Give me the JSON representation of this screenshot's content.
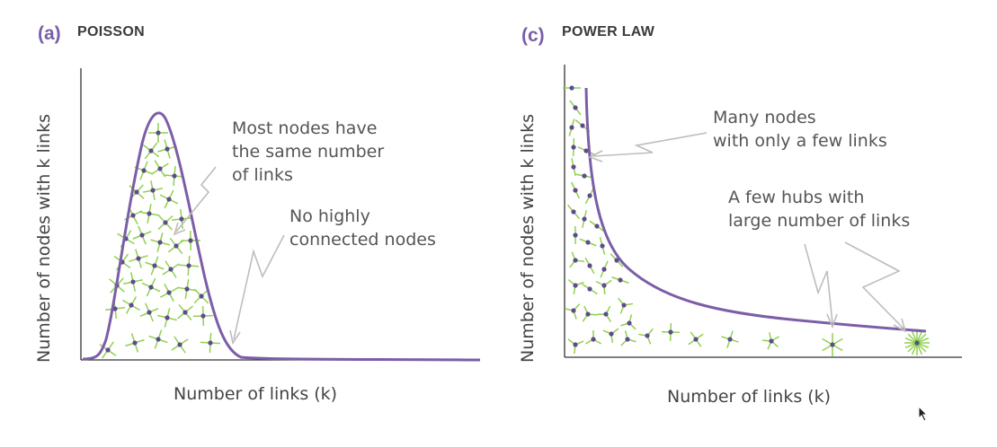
{
  "panel_a": {
    "tag": "(a)",
    "title": "POISSON",
    "annotation_1": [
      "Most nodes have",
      "the same number",
      "of links"
    ],
    "annotation_2": [
      "No highly",
      "connected nodes"
    ],
    "xlabel": "Number of links (k)",
    "ylabel": "Number of nodes with k links"
  },
  "panel_c": {
    "tag": "(c)",
    "title": "POWER LAW",
    "annotation_1": [
      "Many nodes",
      "with only a few links"
    ],
    "annotation_2": [
      "A few hubs with",
      "large number of links"
    ],
    "xlabel": "Number of links (k)",
    "ylabel": "Number of nodes with k links"
  },
  "colors": {
    "curve": "#7b5ea7",
    "node": "#5e4b8b",
    "link": "#8fd14f",
    "axis": "#333333",
    "arrow": "#bdbdbd"
  }
}
